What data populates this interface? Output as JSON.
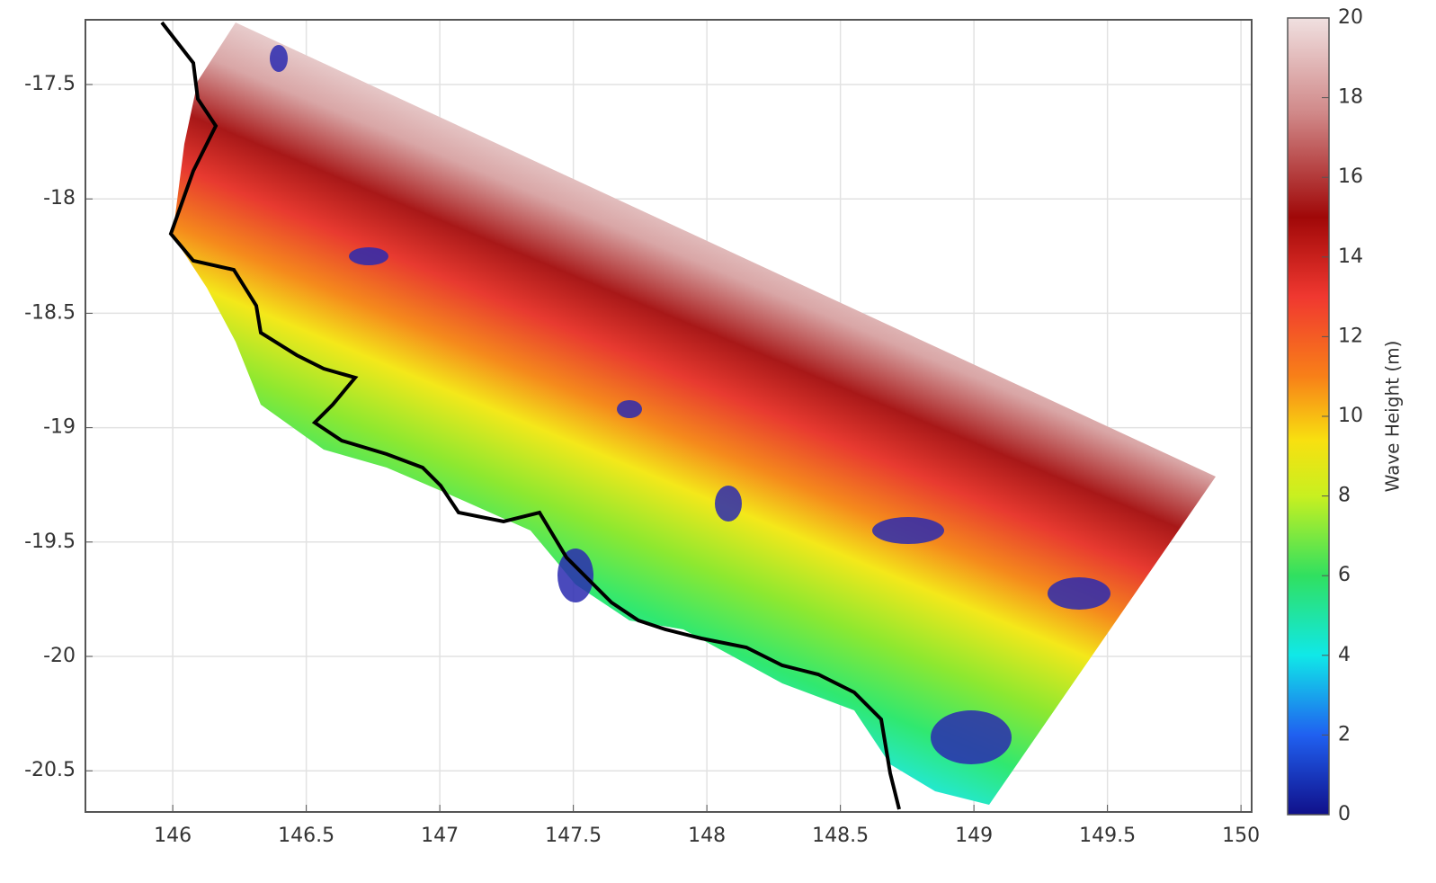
{
  "chart_data": {
    "type": "heatmap",
    "xlim": [
      145.673,
      150.04
    ],
    "xticks": [
      146,
      146.5,
      147,
      147.5,
      148,
      148.5,
      149,
      149.5,
      150
    ],
    "ylim": [
      -20.68,
      -17.217
    ],
    "yticks": [
      -17.5,
      -18,
      -18.5,
      -19,
      -19.5,
      -20,
      -20.5
    ],
    "grid": true,
    "colorbar": {
      "label": "Wave Height (m)",
      "lim": [
        0,
        20
      ],
      "ticks": [
        0,
        2,
        4,
        6,
        8,
        10,
        12,
        14,
        16,
        18,
        20
      ]
    }
  }
}
